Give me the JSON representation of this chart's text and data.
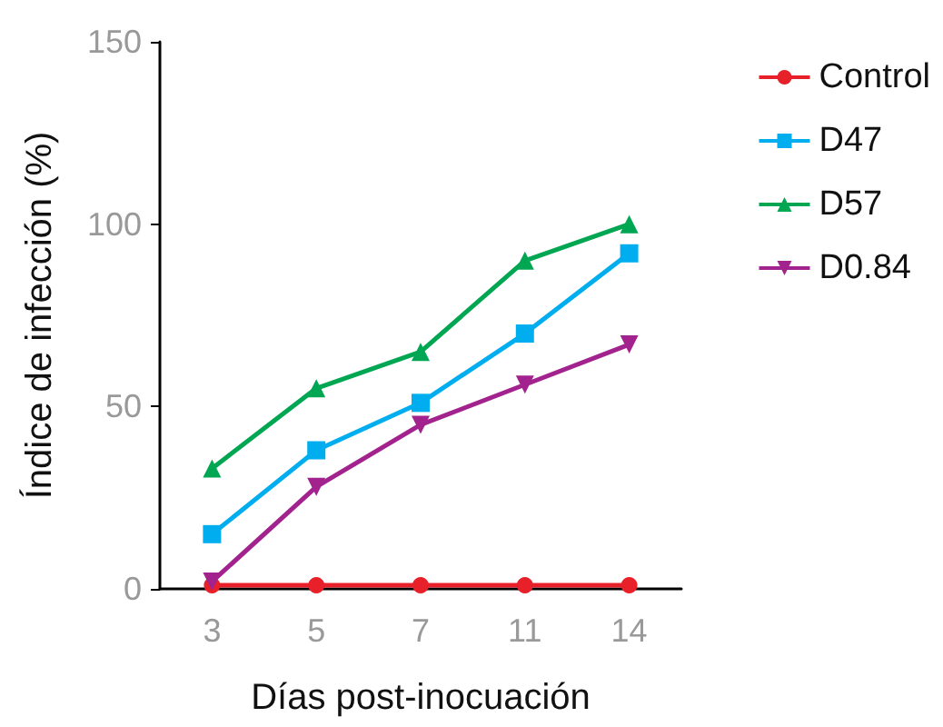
{
  "chart_data": {
    "type": "line",
    "xlabel": "Días post-inocuación",
    "ylabel": "Índice de infección (%)",
    "categories": [
      "3",
      "5",
      "7",
      "11",
      "14"
    ],
    "series": [
      {
        "name": "Control",
        "color": "#e8202a",
        "marker": "circle",
        "values": [
          1,
          1,
          1,
          1,
          1
        ]
      },
      {
        "name": "D47",
        "color": "#00aeef",
        "marker": "square",
        "values": [
          15,
          38,
          51,
          70,
          92
        ]
      },
      {
        "name": "D57",
        "color": "#00a651",
        "marker": "triangle",
        "values": [
          33,
          55,
          65,
          90,
          100
        ]
      },
      {
        "name": "D0.84",
        "color": "#a3238e",
        "marker": "triangle-down",
        "values": [
          2,
          28,
          45,
          56,
          67
        ]
      }
    ],
    "ylim": [
      0,
      150
    ],
    "yticks": [
      0,
      50,
      100,
      150
    ],
    "grid": false,
    "legend": "right"
  }
}
